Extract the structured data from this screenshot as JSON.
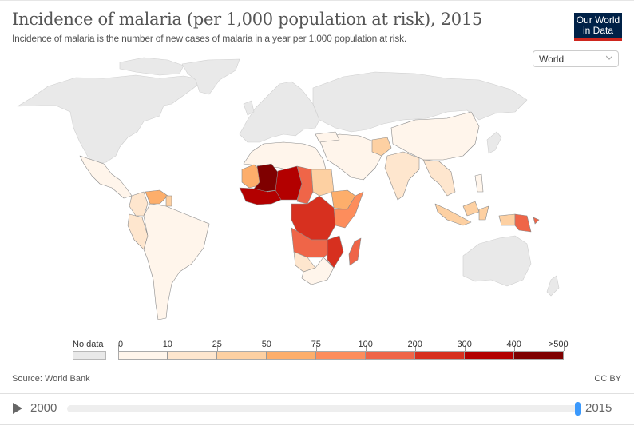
{
  "header": {
    "title": "Incidence of malaria (per 1,000 population at risk), 2015",
    "subtitle": "Incidence of malaria is the number of new cases of malaria in a year per 1,000 population at risk.",
    "logo_line1": "Our World",
    "logo_line2": "in Data",
    "logo_colors": {
      "background": "#002147",
      "accent": "#ce261e"
    }
  },
  "region_select": {
    "value": "World",
    "icon": "chevron-down-icon"
  },
  "legend": {
    "no_data_label": "No data",
    "no_data_color": "#e9e9e9",
    "tick_labels": [
      "0",
      "10",
      "25",
      "50",
      "75",
      "100",
      "200",
      "300",
      "400",
      ">500"
    ],
    "bins": [
      {
        "from": 0,
        "to": 10,
        "color": "#fff5eb"
      },
      {
        "from": 10,
        "to": 25,
        "color": "#fee6ce"
      },
      {
        "from": 25,
        "to": 50,
        "color": "#fdd0a2"
      },
      {
        "from": 50,
        "to": 75,
        "color": "#fdae6b"
      },
      {
        "from": 75,
        "to": 100,
        "color": "#fd8d5c"
      },
      {
        "from": 100,
        "to": 200,
        "color": "#ef6548"
      },
      {
        "from": 200,
        "to": 300,
        "color": "#d7301f"
      },
      {
        "from": 300,
        "to": 400,
        "color": "#b30000"
      },
      {
        "from": 400,
        "to": 500,
        "color": "#7f0000"
      }
    ]
  },
  "chart_data": {
    "type": "choropleth",
    "title": "Incidence of malaria (per 1,000 population at risk), 2015",
    "subtitle": "Incidence of malaria is the number of new cases of malaria in a year per 1,000 population at risk.",
    "year": 2015,
    "regions": [
      {
        "name": "North America",
        "bin": "no data"
      },
      {
        "name": "Greenland",
        "bin": "no data"
      },
      {
        "name": "Europe",
        "bin": "no data"
      },
      {
        "name": "Russia & Central Asia",
        "bin": "no data"
      },
      {
        "name": "Australia",
        "bin": "no data"
      },
      {
        "name": "New Zealand",
        "bin": "no data"
      },
      {
        "name": "Japan",
        "bin": "no data"
      },
      {
        "name": "Mexico & Central America",
        "bin": "0-10"
      },
      {
        "name": "Colombia",
        "bin": "10-25"
      },
      {
        "name": "Venezuela",
        "bin": "50-75"
      },
      {
        "name": "Guyana",
        "bin": "25-50"
      },
      {
        "name": "Peru",
        "bin": "10-25"
      },
      {
        "name": "Brazil & South Cone",
        "bin": "0-10"
      },
      {
        "name": "North Africa & Middle East",
        "bin": "0-10"
      },
      {
        "name": "Mauritania",
        "bin": "50-75"
      },
      {
        "name": "Mali / Burkina Faso",
        "bin": ">500"
      },
      {
        "name": "West Africa coast",
        "bin": "300-400"
      },
      {
        "name": "Niger / Nigeria",
        "bin": "300-400"
      },
      {
        "name": "Chad / CAR",
        "bin": "100-200"
      },
      {
        "name": "Sudan",
        "bin": "25-50"
      },
      {
        "name": "Ethiopia",
        "bin": "50-75"
      },
      {
        "name": "Somalia / Kenya",
        "bin": "75-100"
      },
      {
        "name": "DR Congo / Central Africa",
        "bin": "200-300"
      },
      {
        "name": "Angola / Zambia",
        "bin": "100-200"
      },
      {
        "name": "Mozambique",
        "bin": "200-300"
      },
      {
        "name": "Madagascar",
        "bin": "100-200"
      },
      {
        "name": "Namibia / Botswana",
        "bin": "10-25"
      },
      {
        "name": "South Africa",
        "bin": "0-10"
      },
      {
        "name": "Afghanistan",
        "bin": "25-50"
      },
      {
        "name": "India",
        "bin": "10-25"
      },
      {
        "name": "China",
        "bin": "0-10"
      },
      {
        "name": "Myanmar / Southeast Asia",
        "bin": "10-25"
      },
      {
        "name": "Indonesia",
        "bin": "25-50"
      },
      {
        "name": "Papua New Guinea",
        "bin": "100-200"
      },
      {
        "name": "Solomon Islands",
        "bin": "100-200"
      }
    ]
  },
  "footer": {
    "source": "Source: World Bank",
    "license": "CC BY"
  },
  "timeline": {
    "start_year": "2000",
    "end_year": "2015",
    "play_icon": "play-icon",
    "selected_fraction": 1.0
  }
}
